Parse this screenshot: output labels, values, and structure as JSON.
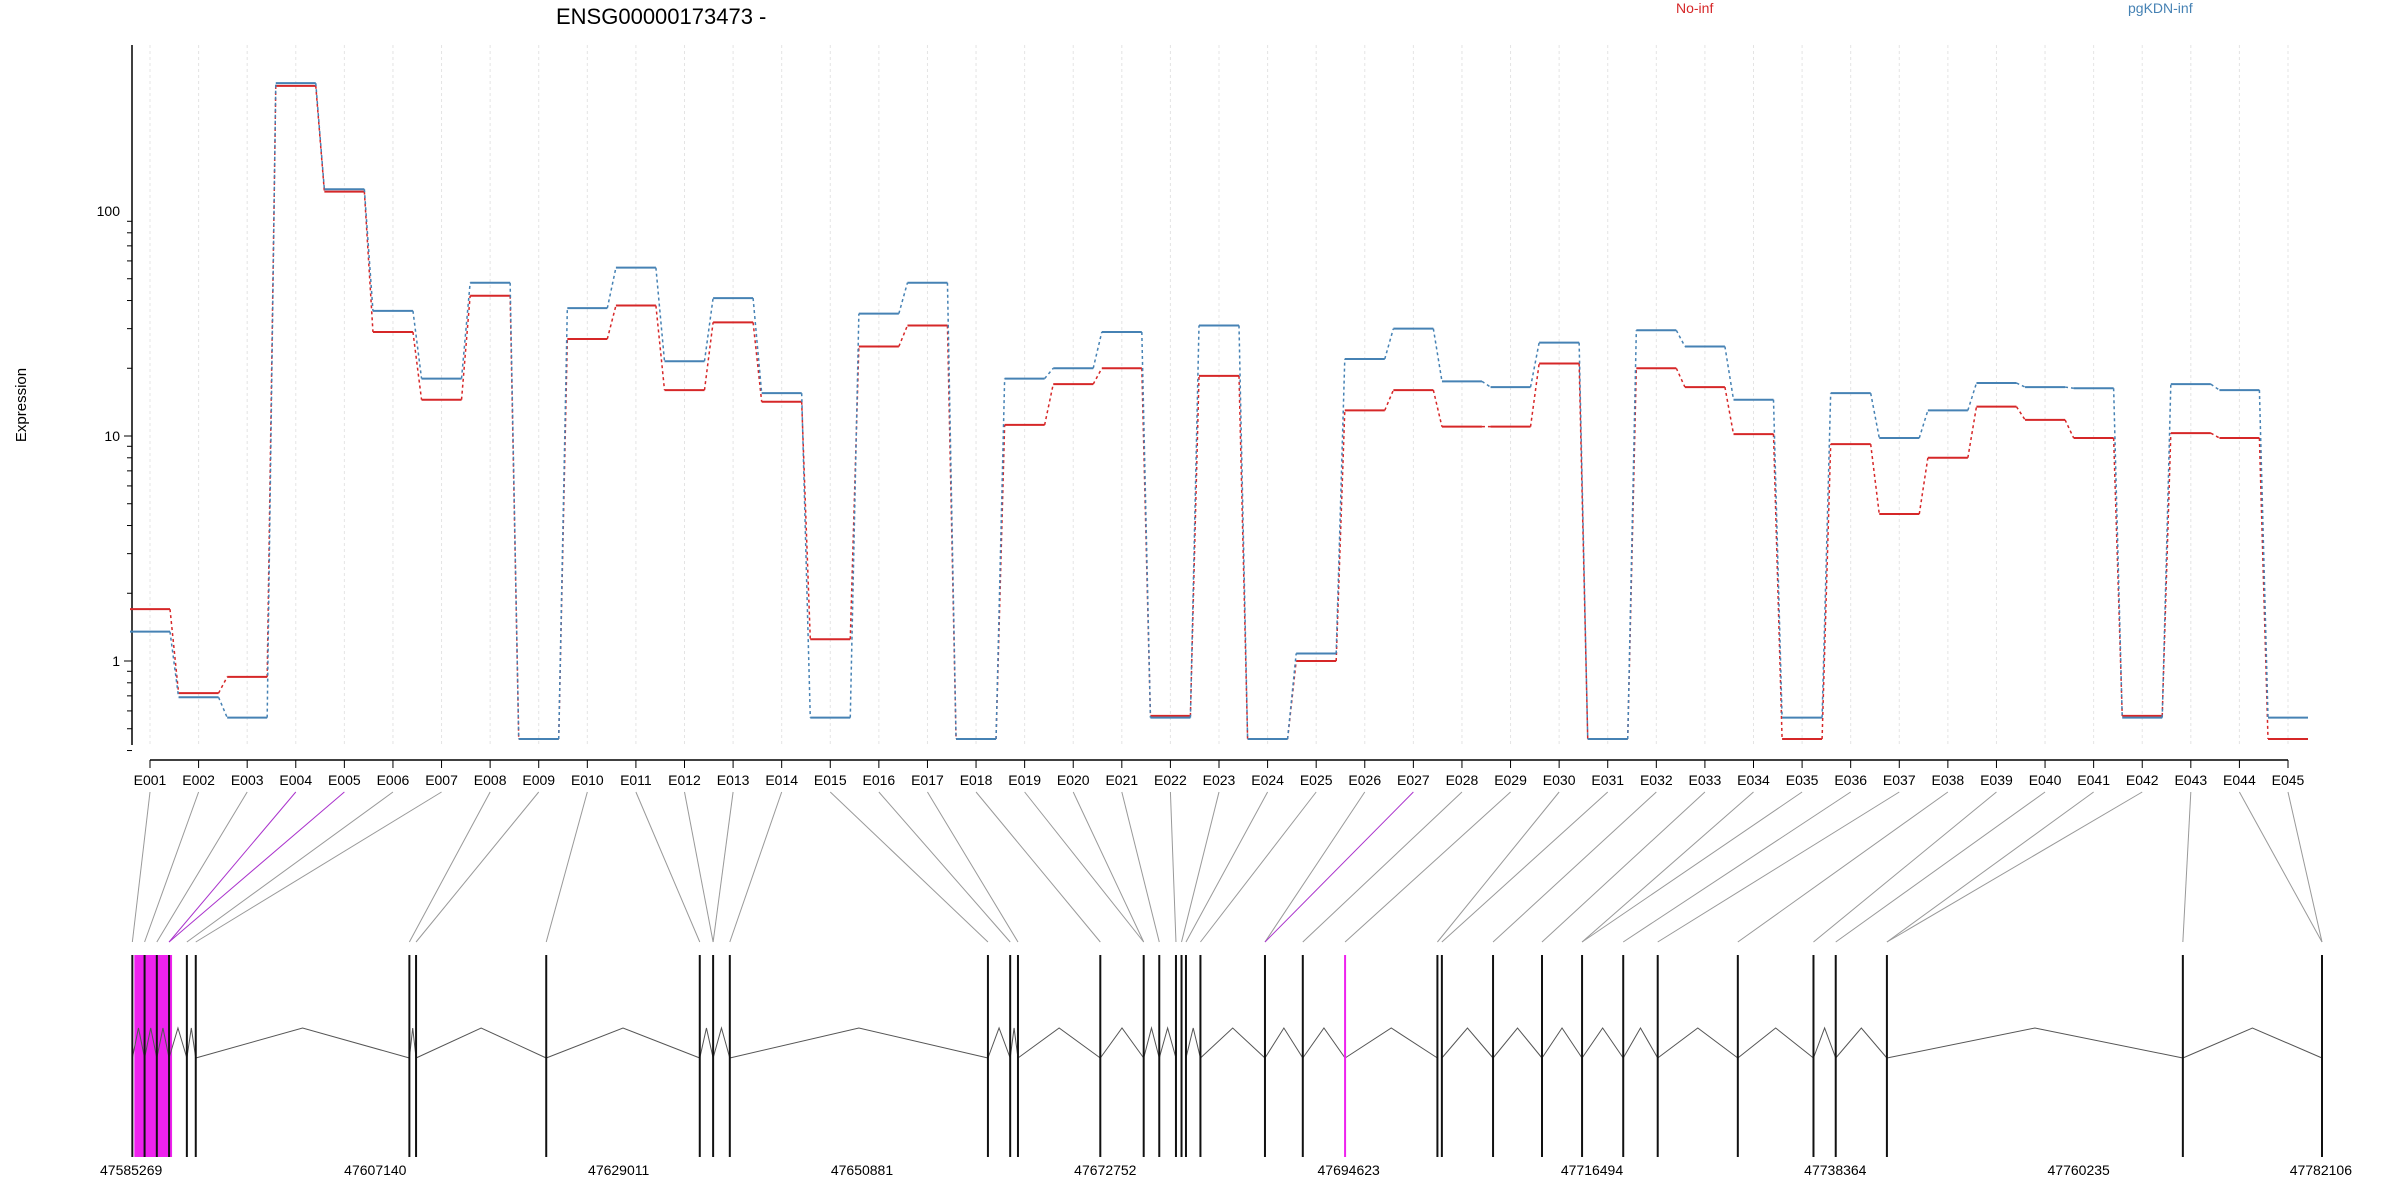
{
  "chart_data": {
    "type": "line",
    "title": "ENSG00000173473 -",
    "xlabel": "",
    "ylabel": "Expression",
    "yscale": "log",
    "ylim": [
      0.35,
      400
    ],
    "yticks": [
      1,
      10,
      100
    ],
    "yticklabels": [
      "1",
      "10",
      "100"
    ],
    "grid": "vertical dashed at each exon",
    "legend_position": "top",
    "categories": [
      "E001",
      "E002",
      "E003",
      "E004",
      "E005",
      "E006",
      "E007",
      "E008",
      "E009",
      "E010",
      "E011",
      "E012",
      "E013",
      "E014",
      "E015",
      "E016",
      "E017",
      "E018",
      "E019",
      "E020",
      "E021",
      "E022",
      "E023",
      "E024",
      "E025",
      "E026",
      "E027",
      "E028",
      "E029",
      "E030",
      "E031",
      "E032",
      "E033",
      "E034",
      "E035",
      "E036",
      "E037",
      "E038",
      "E039",
      "E040",
      "E041",
      "E042",
      "E043",
      "E044",
      "E045"
    ],
    "series": [
      {
        "name": "No-inf",
        "color": "#d62728",
        "values": [
          1.7,
          0.72,
          0.85,
          360,
          122,
          29,
          14.5,
          42,
          0.45,
          27,
          38,
          16,
          32,
          14.2,
          1.25,
          25,
          31,
          0.45,
          11.2,
          17,
          20,
          0.57,
          18.5,
          0.45,
          1.0,
          13,
          16,
          11,
          11,
          21,
          0.45,
          20,
          16.5,
          10.2,
          0.45,
          9.2,
          4.5,
          8,
          13.5,
          11.8,
          9.8,
          0.57,
          10.3,
          9.8,
          0.45
        ]
      },
      {
        "name": "pgKDN-inf",
        "color": "#4682b4",
        "values": [
          1.35,
          0.69,
          0.56,
          370,
          125,
          36,
          18,
          48,
          0.45,
          37,
          56,
          21.5,
          41,
          15.5,
          0.56,
          35,
          48,
          0.45,
          18,
          20,
          29,
          0.56,
          31,
          0.45,
          1.08,
          22,
          30,
          17.5,
          16.5,
          26,
          0.45,
          29.5,
          25,
          14.5,
          0.56,
          15.5,
          9.8,
          13,
          17.2,
          16.5,
          16.3,
          0.56,
          17,
          16,
          0.56
        ]
      }
    ],
    "genomic_axis": {
      "tick_labels": [
        "47585269",
        "47607140",
        "47629011",
        "47650881",
        "47672752",
        "47694623",
        "47716494",
        "47738364",
        "47760235",
        "47782106"
      ],
      "range": [
        47585269,
        47782106
      ],
      "exon_coords": [
        47585300,
        47586400,
        47587500,
        47588600,
        47590200,
        47591000,
        47610200,
        47610800,
        47622500,
        47636300,
        47637500,
        47639000,
        47662200,
        47664200,
        47664900,
        47672300,
        47676200,
        47677600,
        47679100,
        47679600,
        47680000,
        47681300,
        47687100,
        47690500,
        47694300,
        47702600,
        47703000,
        47707600,
        47712000,
        47715600,
        47719300,
        47722400,
        47729600,
        47736400,
        47738400,
        47743000,
        47769600,
        47782106,
        47782106
      ],
      "highlight_color": "#ee22ee"
    }
  }
}
